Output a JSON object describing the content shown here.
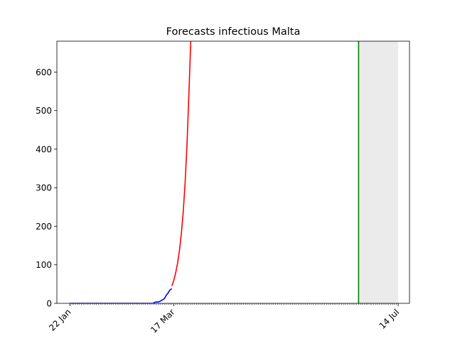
{
  "chart_data": {
    "type": "line",
    "title": "Forecasts infectious Malta",
    "xlabel": "",
    "ylabel": "",
    "x_axis": {
      "type": "date",
      "range": [
        "2020-01-15",
        "2020-07-20"
      ],
      "tick_labels": [
        {
          "date": "2020-01-22",
          "label": "22 Jan"
        },
        {
          "date": "2020-03-17",
          "label": "17 Mar"
        },
        {
          "date": "2020-07-14",
          "label": "14 Jul"
        }
      ],
      "minor_ticks": "daily"
    },
    "y_axis": {
      "range": [
        0,
        680
      ],
      "ticks": [
        0,
        100,
        200,
        300,
        400,
        500,
        600
      ]
    },
    "grid": false,
    "legend": "none",
    "series": [
      {
        "color": "#0000ff",
        "points": [
          [
            "2020-01-22",
            0
          ],
          [
            "2020-02-15",
            0
          ],
          [
            "2020-03-06",
            0
          ],
          [
            "2020-03-07",
            3
          ],
          [
            "2020-03-09",
            4
          ],
          [
            "2020-03-10",
            6
          ],
          [
            "2020-03-11",
            9
          ],
          [
            "2020-03-12",
            12
          ],
          [
            "2020-03-13",
            21
          ],
          [
            "2020-03-14",
            27
          ],
          [
            "2020-03-15",
            35
          ],
          [
            "2020-03-16",
            38
          ]
        ]
      },
      {
        "color": "#ff0000",
        "points": [
          [
            "2020-03-16",
            45
          ],
          [
            "2020-03-17",
            60
          ],
          [
            "2020-03-18",
            79
          ],
          [
            "2020-03-19",
            104
          ],
          [
            "2020-03-20",
            137
          ],
          [
            "2020-03-21",
            180
          ],
          [
            "2020-03-22",
            237
          ],
          [
            "2020-03-23",
            312
          ],
          [
            "2020-03-24",
            411
          ],
          [
            "2020-03-25",
            541
          ],
          [
            "2020-03-26",
            680
          ]
        ]
      }
    ],
    "vertical_line": {
      "date": "2020-06-23",
      "color": "#008000"
    },
    "shaded_region": {
      "from": "2020-06-23",
      "to": "2020-07-14",
      "color": "#ebebeb"
    }
  }
}
